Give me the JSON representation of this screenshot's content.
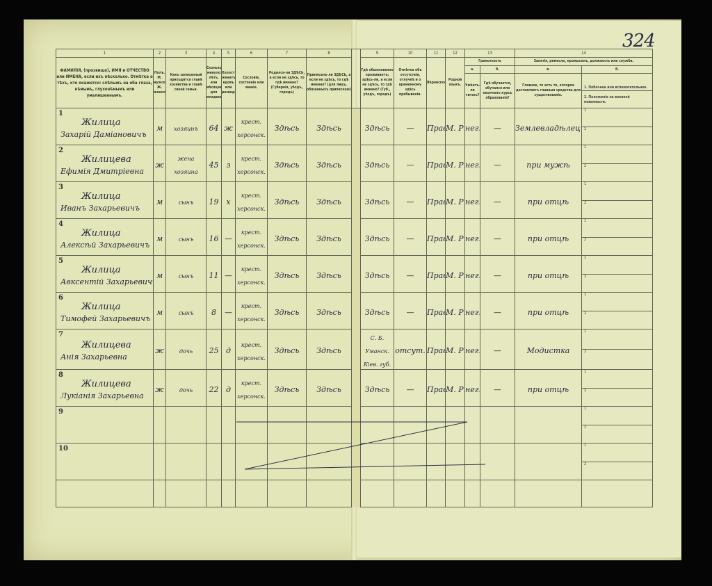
{
  "page_number": "324",
  "column_numbers": [
    "1",
    "2",
    "3",
    "4",
    "5",
    "6",
    "7",
    "8",
    "9",
    "10",
    "11",
    "12",
    "13",
    "14"
  ],
  "headers": {
    "c1": "ФАМИЛІЯ, (прозвище), ИМЯ и ОТЧЕСТВО или ИМЕНА, если ихъ нѣсколько. Отмѣтка о тѣхъ, кто окажется: слѣпымъ на оба глаза, нѣмымъ, глухонѣмымъ или умалишеннымъ.",
    "c2": "Полъ. М. мужской. Ж. женскій.",
    "c3": "Какъ записанный приходится главѣ хозяйства и главѣ своей семьи.",
    "c4": "Сколько минуло лѣтъ, или мѣсяцевъ для младенцевъ",
    "c5": "Холостъ, женатъ, вдовъ или разведенъ",
    "c6": "Сословіе, состояніе или званіе.",
    "c7": "Родился-ли ЗДѢСЬ, а если не здѣсь, то гдѣ именно? (Губернія, уѣздъ, городъ)",
    "c8": "Приписанъ-ли ЗДѢСЬ, а если не здѣсь, то гдѣ именно? (для лицъ, обязанныхъ припискою)",
    "c9": "Гдѣ обыкновенно проживаетъ: здѣсь-ли, а если не здѣсь, то гдѣ именно? (Губ., уѣздъ, городъ)",
    "c10": "Отмѣтка объ отсутствіи, отлучкѣ и о временномъ здѣсь пребываніи.",
    "c11": "Вѣроисповѣданіе.",
    "c12": "Родной языкъ.",
    "c13_group": "Грамотность",
    "c13a_letter": "а.",
    "c13b_letter": "б.",
    "c13a": "Умѣетъ-ли читать?",
    "c13b": "Гдѣ обучается, обучался или окончилъ курсъ образованія?",
    "c14_group": "Занятія, ремесло, промыселъ, должность или служба.",
    "c14a_letter": "в.",
    "c14b_letter": "б.",
    "c14a": "Главное, то есть то, которое доставляетъ главныя средства для существованія.",
    "c14b_1": "1. Побочное или вспомогательное.",
    "c14b_2": "2. Положеніе на военной повинности."
  },
  "rows": [
    {
      "n": "1",
      "surname": "Жилица",
      "given": "Захарій Даміановичъ",
      "sex": "м",
      "relation": "хозяинъ",
      "age": "64",
      "marital": "ж",
      "estate": "крест. херсонск.",
      "born": "Здѣсь",
      "registered": "Здѣсь",
      "resides": "Здѣсь",
      "absence": "—",
      "religion": "Прав.",
      "language": "М. Р.",
      "literate": "нег.",
      "education": "—",
      "occupation": "Землевладѣлецъ"
    },
    {
      "n": "2",
      "surname": "Жилицева",
      "given": "Ефимія Дмитріевна",
      "sex": "ж",
      "relation": "жена хозяина",
      "age": "45",
      "marital": "з",
      "estate": "крест. херсонск.",
      "born": "Здѣсь",
      "registered": "Здѣсь",
      "resides": "Здѣсь",
      "absence": "—",
      "religion": "Прав.",
      "language": "М. Р.",
      "literate": "нег.",
      "education": "—",
      "occupation": "при мужѣ"
    },
    {
      "n": "3",
      "surname": "Жилица",
      "given": "Иванъ Захарьевичъ",
      "sex": "м",
      "relation": "сынъ",
      "age": "19",
      "marital": "х",
      "estate": "крест. херсонск.",
      "born": "Здѣсь",
      "registered": "Здѣсь",
      "resides": "Здѣсь",
      "absence": "—",
      "religion": "Прав.",
      "language": "М. Р.",
      "literate": "нег.",
      "education": "—",
      "occupation": "при отцѣ"
    },
    {
      "n": "4",
      "surname": "Жилица",
      "given": "Алексѣй Захарьевичъ",
      "sex": "м",
      "relation": "сынъ",
      "age": "16",
      "marital": "—",
      "estate": "крест. херсонск.",
      "born": "Здѣсь",
      "registered": "Здѣсь",
      "resides": "Здѣсь",
      "absence": "—",
      "religion": "Прав.",
      "language": "М. Р.",
      "literate": "нег.",
      "education": "—",
      "occupation": "при отцѣ"
    },
    {
      "n": "5",
      "surname": "Жилица",
      "given": "Авксентій Захарьевичъ",
      "sex": "м",
      "relation": "сынъ",
      "age": "11",
      "marital": "—",
      "estate": "крест. херсонск.",
      "born": "Здѣсь",
      "registered": "Здѣсь",
      "resides": "Здѣсь",
      "absence": "—",
      "religion": "Прав.",
      "language": "М. Р.",
      "literate": "нег.",
      "education": "—",
      "occupation": "при отцѣ"
    },
    {
      "n": "6",
      "surname": "Жилица",
      "given": "Тимофей Захарьевичъ",
      "sex": "м",
      "relation": "сынъ",
      "age": "8",
      "marital": "—",
      "estate": "крест. херсонск.",
      "born": "Здѣсь",
      "registered": "Здѣсь",
      "resides": "Здѣсь",
      "absence": "—",
      "religion": "Прав.",
      "language": "М. Р.",
      "literate": "нег.",
      "education": "—",
      "occupation": "при отцѣ"
    },
    {
      "n": "7",
      "surname": "Жилицева",
      "given": "Анія Захарьевна",
      "sex": "ж",
      "relation": "дочь",
      "age": "25",
      "marital": "д",
      "estate": "крест. херсонск.",
      "born": "Здѣсь",
      "registered": "Здѣсь",
      "resides": "С. Б. Уманск. Кіев. губ.",
      "absence": "отсут.",
      "religion": "Прав.",
      "language": "М. Р.",
      "literate": "нег.",
      "education": "—",
      "occupation": "Модистка"
    },
    {
      "n": "8",
      "surname": "Жилицева",
      "given": "Лукіанія Захарьевна",
      "sex": "ж",
      "relation": "дочь",
      "age": "22",
      "marital": "д",
      "estate": "крест. херсонск.",
      "born": "Здѣсь",
      "registered": "Здѣсь",
      "resides": "Здѣсь",
      "absence": "—",
      "religion": "Прав.",
      "language": "М. Р.",
      "literate": "нег.",
      "education": "—",
      "occupation": "при отцѣ"
    },
    {
      "n": "9"
    },
    {
      "n": "10"
    }
  ],
  "sub_labels": [
    "1",
    "2"
  ]
}
